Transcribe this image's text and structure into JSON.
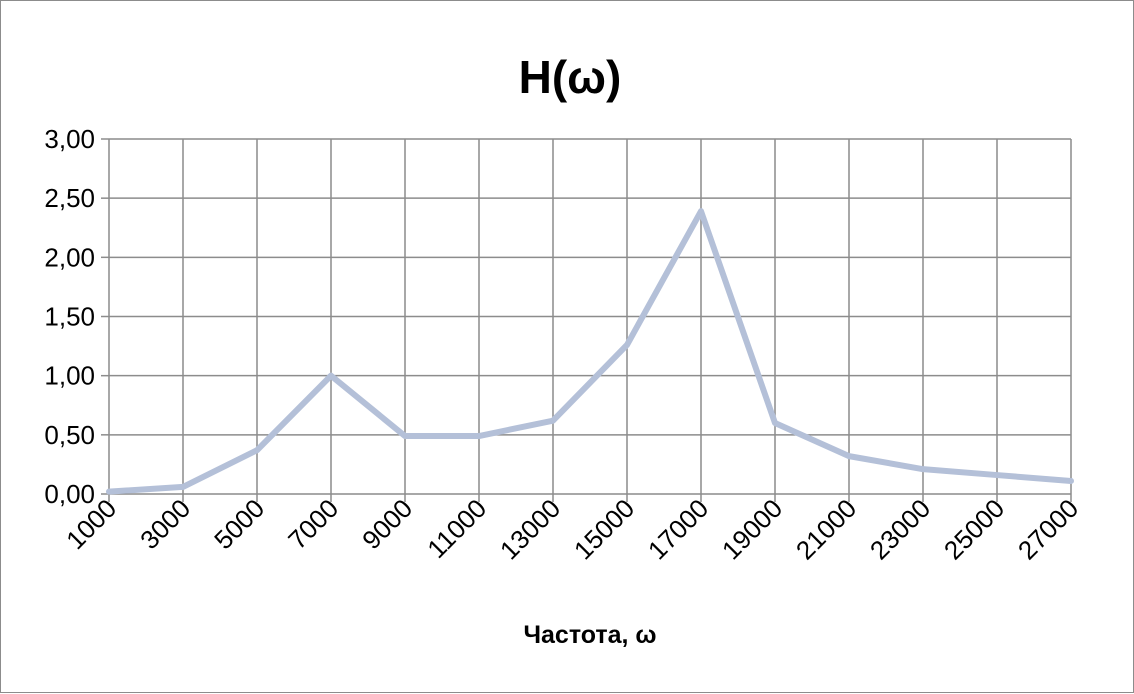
{
  "chart_data": {
    "type": "line",
    "title": "H(ω)",
    "xlabel": "Частота, ω",
    "ylabel": "",
    "categories": [
      "1000",
      "3000",
      "5000",
      "7000",
      "9000",
      "11000",
      "13000",
      "15000",
      "17000",
      "19000",
      "21000",
      "23000",
      "25000",
      "27000"
    ],
    "series": [
      {
        "values": [
          0.02,
          0.06,
          0.37,
          1.0,
          0.49,
          0.49,
          0.62,
          1.26,
          2.39,
          0.6,
          0.32,
          0.21,
          0.16,
          0.11
        ]
      }
    ],
    "ylim": [
      0,
      3
    ],
    "yticks": [
      "0,00",
      "0,50",
      "1,00",
      "1,50",
      "2,00",
      "2,50",
      "3,00"
    ],
    "grid": true,
    "legend": "none",
    "colors": {
      "series": "#b4c0d8",
      "grid": "#8c8c8c"
    }
  }
}
